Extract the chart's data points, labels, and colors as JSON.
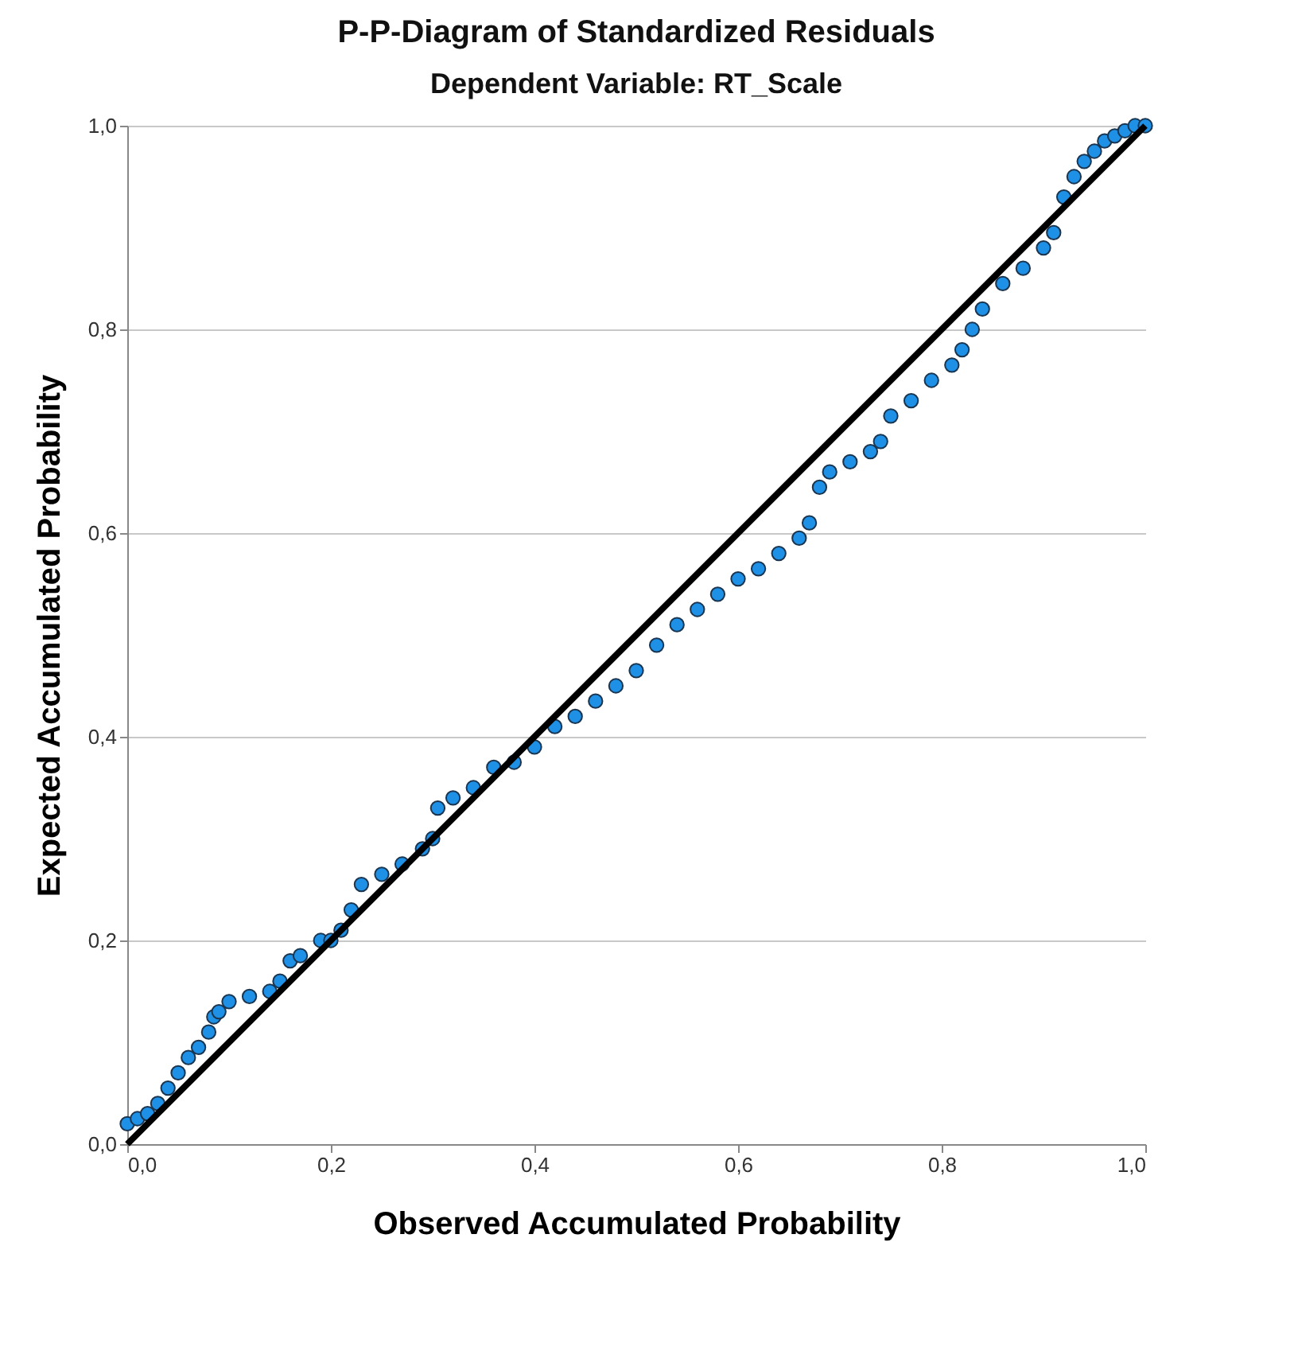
{
  "chart_data": {
    "type": "scatter",
    "title": "P-P-Diagram of Standardized Residuals",
    "subtitle": "Dependent Variable: RT_Scale",
    "xlabel": "Observed Accumulated Probability",
    "ylabel": "Expected Accumulated Probability",
    "xlim": [
      0,
      1
    ],
    "ylim": [
      0,
      1
    ],
    "xticks": [
      {
        "value": 0,
        "label": "0,0"
      },
      {
        "value": 0.2,
        "label": "0,2"
      },
      {
        "value": 0.4,
        "label": "0,4"
      },
      {
        "value": 0.6,
        "label": "0,6"
      },
      {
        "value": 0.8,
        "label": "0,8"
      },
      {
        "value": 1,
        "label": "1,0"
      }
    ],
    "yticks": [
      {
        "value": 0,
        "label": "0,0"
      },
      {
        "value": 0.2,
        "label": "0,2"
      },
      {
        "value": 0.4,
        "label": "0,4"
      },
      {
        "value": 0.6,
        "label": "0,6"
      },
      {
        "value": 0.8,
        "label": "0,8"
      },
      {
        "value": 1,
        "label": "1,0"
      }
    ],
    "grid": "y",
    "series": [
      {
        "color": "#1e90e6",
        "marker": "circle",
        "x": [
          0.0,
          0.01,
          0.02,
          0.03,
          0.04,
          0.05,
          0.06,
          0.07,
          0.08,
          0.085,
          0.09,
          0.1,
          0.12,
          0.14,
          0.15,
          0.16,
          0.17,
          0.19,
          0.2,
          0.21,
          0.22,
          0.23,
          0.25,
          0.27,
          0.29,
          0.3,
          0.305,
          0.32,
          0.34,
          0.36,
          0.38,
          0.4,
          0.42,
          0.44,
          0.46,
          0.48,
          0.5,
          0.52,
          0.54,
          0.56,
          0.58,
          0.6,
          0.62,
          0.64,
          0.66,
          0.67,
          0.68,
          0.69,
          0.71,
          0.73,
          0.74,
          0.75,
          0.77,
          0.79,
          0.81,
          0.82,
          0.83,
          0.84,
          0.86,
          0.88,
          0.9,
          0.91,
          0.92,
          0.93,
          0.94,
          0.95,
          0.96,
          0.97,
          0.98,
          0.99,
          1.0
        ],
        "values": [
          0.02,
          0.025,
          0.03,
          0.04,
          0.055,
          0.07,
          0.085,
          0.095,
          0.11,
          0.125,
          0.13,
          0.14,
          0.145,
          0.15,
          0.16,
          0.18,
          0.185,
          0.2,
          0.2,
          0.21,
          0.23,
          0.255,
          0.265,
          0.275,
          0.29,
          0.3,
          0.33,
          0.34,
          0.35,
          0.37,
          0.375,
          0.39,
          0.41,
          0.42,
          0.435,
          0.45,
          0.465,
          0.49,
          0.51,
          0.525,
          0.54,
          0.555,
          0.565,
          0.58,
          0.595,
          0.61,
          0.645,
          0.66,
          0.67,
          0.68,
          0.69,
          0.715,
          0.73,
          0.75,
          0.765,
          0.78,
          0.8,
          0.82,
          0.845,
          0.86,
          0.88,
          0.895,
          0.93,
          0.95,
          0.965,
          0.975,
          0.985,
          0.99,
          0.995,
          1.0,
          1.0
        ]
      },
      {
        "type": "line",
        "color": "#000000",
        "x": [
          0,
          1
        ],
        "values": [
          0,
          1
        ]
      }
    ]
  }
}
